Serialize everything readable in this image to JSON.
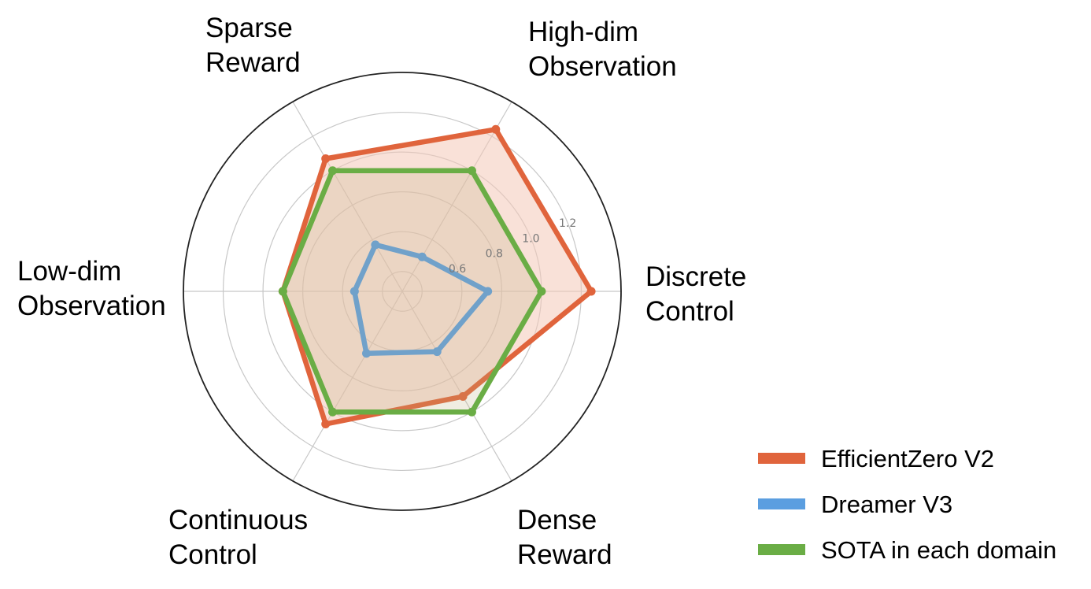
{
  "chart_data": {
    "type": "radar",
    "title": "",
    "categories": [
      [
        "Discrete",
        "Control"
      ],
      [
        "High-dim",
        "Observation"
      ],
      [
        "Sparse",
        "Reward"
      ],
      [
        "Low-dim",
        "Observation"
      ],
      [
        "Continuous",
        "Control"
      ],
      [
        "Dense",
        "Reward"
      ]
    ],
    "radial_range": [
      0.3,
      1.4
    ],
    "radial_ticks": [
      "0.6",
      "0.8",
      "1.0",
      "1.2"
    ],
    "radial_tick_values": [
      0.6,
      0.8,
      1.0,
      1.2
    ],
    "grid": true,
    "legend_position": "bottom-right",
    "series": [
      {
        "name": "EfficientZero V2",
        "color": "#e0643c",
        "fill": "#f4c8b8",
        "values": [
          1.25,
          1.24,
          1.07,
          0.9,
          1.07,
          0.91
        ]
      },
      {
        "name": "Dreamer V3",
        "color": "#5b9ee0",
        "values": [
          0.73,
          0.5,
          0.57,
          0.54,
          0.66,
          0.65
        ]
      },
      {
        "name": "SOTA in each domain",
        "color": "#6aad45",
        "values": [
          1.0,
          1.0,
          1.0,
          0.9,
          1.0,
          1.0
        ]
      }
    ]
  }
}
